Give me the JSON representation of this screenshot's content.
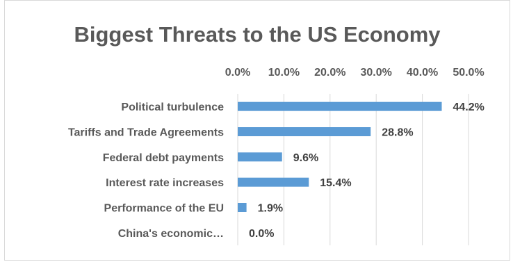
{
  "chart_data": {
    "type": "bar",
    "orientation": "horizontal",
    "title": "Biggest Threats to the US Economy",
    "xlabel": "",
    "ylabel": "",
    "categories": [
      "Political turbulence",
      "Tariffs and Trade Agreements",
      "Federal debt payments",
      "Interest rate increases",
      "Performance of the EU",
      "China's economic…"
    ],
    "values": [
      44.2,
      28.8,
      9.6,
      15.4,
      1.9,
      0.0
    ],
    "data_labels": [
      "44.2%",
      "28.8%",
      "9.6%",
      "15.4%",
      "1.9%",
      "0.0%"
    ],
    "xlim": [
      0,
      50
    ],
    "ticks": [
      0,
      10,
      20,
      30,
      40,
      50
    ],
    "tick_labels": [
      "0.0%",
      "10.0%",
      "20.0%",
      "30.0%",
      "40.0%",
      "50.0%"
    ],
    "axis_position": "top",
    "grid": true,
    "legend": "none",
    "bar_color": "#5b9bd5",
    "grid_color": "#d9d9d9"
  }
}
